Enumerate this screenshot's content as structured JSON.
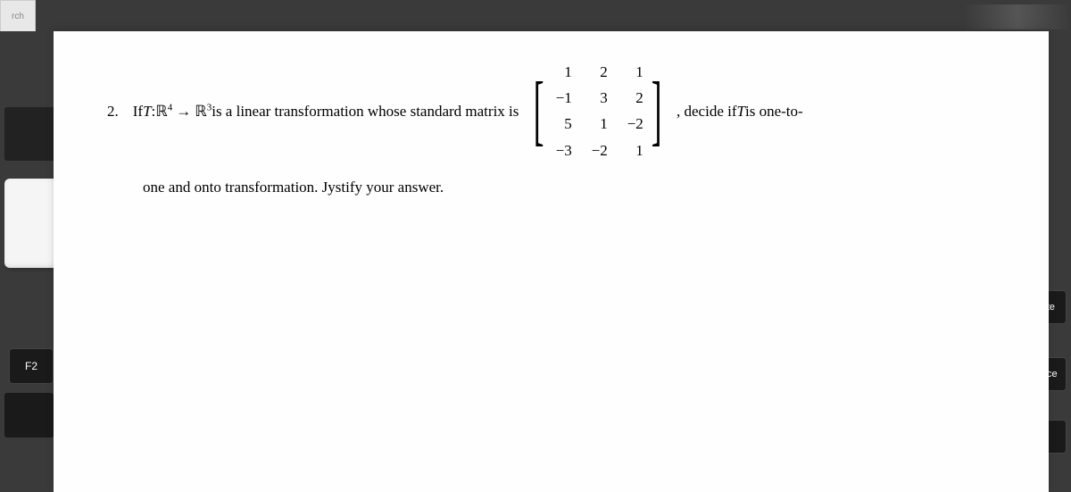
{
  "tab": {
    "label": "rch"
  },
  "keyboard": {
    "f2": "F2",
    "delete": "elete",
    "space": "space",
    "slash": "\\"
  },
  "problem": {
    "number": "2.",
    "text_before": "If ",
    "T": "T",
    "colon": " : ",
    "R": "ℝ",
    "sup4": "4",
    "arrow": "→",
    "sup3": "3",
    "text_mid": " is a linear transformation whose standard matrix is ",
    "text_after": ", decide if ",
    "text_after2": " is one-to-",
    "line2_a": "one and ",
    "onto": "onto",
    "line2_b": " transformation. Jystify your answer.",
    "matrix": {
      "rows": 4,
      "cols": 3,
      "cells": [
        "1",
        "2",
        "1",
        "−1",
        "3",
        "2",
        "5",
        "1",
        "−2",
        "−3",
        "−2",
        "1"
      ]
    }
  },
  "faint": {
    "text1": "",
    "text2": ""
  }
}
